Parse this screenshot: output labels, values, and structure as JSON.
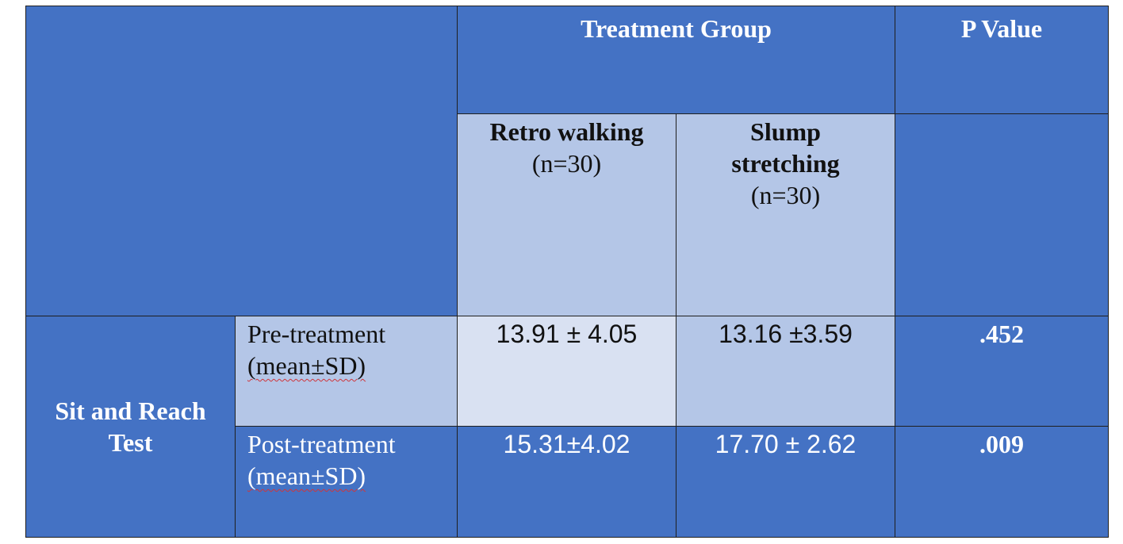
{
  "table": {
    "header": {
      "treatment_group": "Treatment Group",
      "p_value": "P Value"
    },
    "groups": [
      {
        "name": "Retro walking",
        "n": "(n=30)"
      },
      {
        "name_line1": "Slump",
        "name_line2": "stretching",
        "n": "(n=30)"
      }
    ],
    "test_name_line1": "Sit and Reach",
    "test_name_line2": "Test",
    "rows": [
      {
        "label": "Pre-treatment",
        "stat_label": "(mean±SD)",
        "retro": "13.91 ± 4.05",
        "slump": "13.16 ±3.59",
        "p": ".452"
      },
      {
        "label": "Post-treatment",
        "stat_label": "(mean±SD)",
        "retro": "15.31±4.02",
        "slump": "17.70 ± 2.62",
        "p": ".009"
      }
    ]
  },
  "colors": {
    "header_fill": "#4472c4",
    "subheader_fill": "#b4c6e7",
    "highlight_fill": "#d9e1f2"
  }
}
